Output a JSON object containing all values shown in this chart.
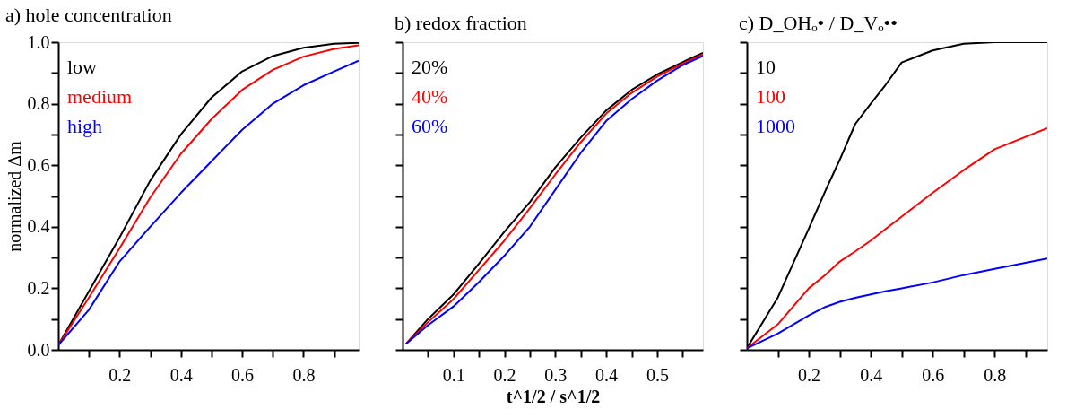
{
  "chart_data": [
    {
      "type": "line",
      "title": "a) hole concentration",
      "ylabel": "normalized Δm",
      "xlim": [
        0,
        0.98
      ],
      "ylim": [
        0,
        1
      ],
      "xticks": [
        {
          "value": 0.1,
          "label": null
        },
        0.2,
        {
          "value": 0.3,
          "label": null
        },
        0.4,
        {
          "value": 0.5,
          "label": null
        },
        0.6,
        {
          "value": 0.7,
          "label": null
        },
        0.8,
        {
          "value": 0.9,
          "label": null
        }
      ],
      "yticks": [
        {
          "value": 0,
          "label": "0.0"
        },
        {
          "value": 0.1,
          "label": null
        },
        0.2,
        {
          "value": 0.3,
          "label": null
        },
        0.4,
        {
          "value": 0.5,
          "label": null
        },
        0.6,
        {
          "value": 0.7,
          "label": null
        },
        0.8,
        {
          "value": 0.9,
          "label": null
        },
        {
          "value": 1,
          "label": "1.0"
        }
      ],
      "grid": false,
      "legend": "top left",
      "line_style": "solid",
      "x": [
        0,
        0.1,
        0.2,
        0.3,
        0.4,
        0.5,
        0.6,
        0.7,
        0.8,
        0.9,
        0.98
      ],
      "series": [
        {
          "name": "low",
          "color": "#000000",
          "values": [
            0.015,
            0.19,
            0.365,
            0.55,
            0.7,
            0.82,
            0.905,
            0.955,
            0.982,
            0.995,
            0.998
          ]
        },
        {
          "name": "medium",
          "color": "#ff0000",
          "values": [
            0.015,
            0.17,
            0.33,
            0.495,
            0.637,
            0.75,
            0.845,
            0.91,
            0.953,
            0.978,
            0.99
          ]
        },
        {
          "name": "high",
          "color": "#0000ff",
          "values": [
            0.015,
            0.13,
            0.287,
            0.4,
            0.51,
            0.613,
            0.715,
            0.8,
            0.86,
            0.905,
            0.94
          ]
        }
      ]
    },
    {
      "type": "line",
      "title": "b) redox fraction",
      "xlabel": "t^1/2 / s^1/2",
      "xlim": [
        0,
        0.59
      ],
      "ylim": [
        0,
        1
      ],
      "tick_labels": "x",
      "xticks": [
        {
          "value": 0.05,
          "label": null
        },
        0.1,
        {
          "value": 0.15,
          "label": null
        },
        0.2,
        {
          "value": 0.25,
          "label": null
        },
        0.3,
        {
          "value": 0.35,
          "label": null
        },
        0.4,
        {
          "value": 0.45,
          "label": null
        },
        0.5,
        {
          "value": 0.55,
          "label": null
        }
      ],
      "yticks": [
        {
          "value": 0,
          "label": null
        },
        {
          "value": 0.1,
          "label": null
        },
        {
          "value": 0.2,
          "label": null
        },
        {
          "value": 0.3,
          "label": null
        },
        {
          "value": 0.4,
          "label": null
        },
        {
          "value": 0.5,
          "label": null
        },
        {
          "value": 0.6,
          "label": null
        },
        {
          "value": 0.7,
          "label": null
        },
        {
          "value": 0.8,
          "label": null
        },
        {
          "value": 0.9,
          "label": null
        },
        {
          "value": 1,
          "label": null
        }
      ],
      "grid": false,
      "legend": "top left",
      "line_style": "solid",
      "x": [
        0.007,
        0.05,
        0.1,
        0.15,
        0.2,
        0.25,
        0.3,
        0.35,
        0.4,
        0.45,
        0.5,
        0.55,
        0.59
      ],
      "series": [
        {
          "name": "20%",
          "color": "#000000",
          "values": [
            0.02,
            0.1,
            0.18,
            0.28,
            0.384,
            0.48,
            0.593,
            0.69,
            0.778,
            0.845,
            0.895,
            0.935,
            0.965
          ]
        },
        {
          "name": "40%",
          "color": "#ff0000",
          "values": [
            0.02,
            0.09,
            0.165,
            0.26,
            0.355,
            0.46,
            0.57,
            0.675,
            0.768,
            0.835,
            0.888,
            0.93,
            0.96
          ]
        },
        {
          "name": "60%",
          "color": "#0000ff",
          "values": [
            0.02,
            0.08,
            0.141,
            0.22,
            0.306,
            0.4,
            0.52,
            0.64,
            0.744,
            0.815,
            0.875,
            0.925,
            0.955
          ]
        }
      ]
    },
    {
      "type": "line",
      "title": "c) D_OHₒ• / D_Vₒ••",
      "xlim": [
        0,
        0.97
      ],
      "ylim": [
        0,
        1
      ],
      "tick_labels": "x",
      "xticks": [
        {
          "value": 0.1,
          "label": null
        },
        0.2,
        {
          "value": 0.3,
          "label": null
        },
        0.4,
        {
          "value": 0.5,
          "label": null
        },
        0.6,
        {
          "value": 0.7,
          "label": null
        },
        0.8,
        {
          "value": 0.9,
          "label": null
        }
      ],
      "yticks": [
        {
          "value": 0,
          "label": null
        },
        {
          "value": 0.1,
          "label": null
        },
        {
          "value": 0.2,
          "label": null
        },
        {
          "value": 0.3,
          "label": null
        },
        {
          "value": 0.4,
          "label": null
        },
        {
          "value": 0.5,
          "label": null
        },
        {
          "value": 0.6,
          "label": null
        },
        {
          "value": 0.7,
          "label": null
        },
        {
          "value": 0.8,
          "label": null
        },
        {
          "value": 0.9,
          "label": null
        },
        {
          "value": 1,
          "label": null
        }
      ],
      "grid": false,
      "legend": "top left",
      "line_style": "solid",
      "x": [
        0,
        0.1,
        0.2,
        0.255,
        0.3,
        0.35,
        0.4,
        0.447,
        0.5,
        0.6,
        0.7,
        0.8,
        0.97
      ],
      "series": [
        {
          "name": "10",
          "color": "#000000",
          "values": [
            0.005,
            0.17,
            0.394,
            0.52,
            0.618,
            0.734,
            0.8,
            0.86,
            0.934,
            0.973,
            0.995,
            1.0,
            1.0
          ]
        },
        {
          "name": "100",
          "color": "#ff0000",
          "values": [
            0.005,
            0.083,
            0.2,
            0.245,
            0.287,
            0.32,
            0.355,
            0.392,
            0.433,
            0.51,
            0.584,
            0.652,
            0.72
          ]
        },
        {
          "name": "1000",
          "color": "#0000ff",
          "values": [
            0.005,
            0.053,
            0.112,
            0.14,
            0.156,
            0.169,
            0.18,
            0.19,
            0.2,
            0.219,
            0.243,
            0.263,
            0.297
          ]
        }
      ]
    }
  ]
}
